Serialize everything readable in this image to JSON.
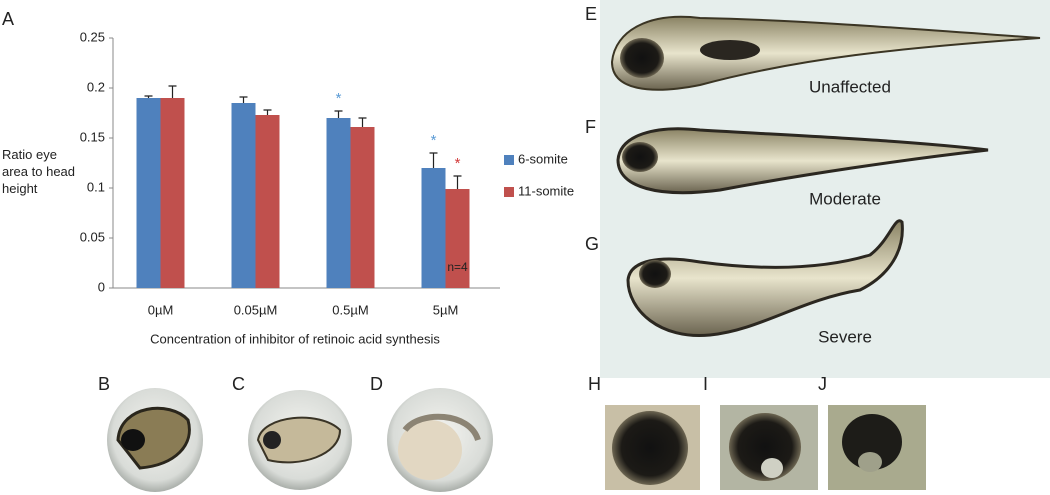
{
  "chart_data": {
    "type": "bar",
    "y_label": "Ratio eye area to head height",
    "x_label": "Concentration of inhibitor of retinoic acid synthesis",
    "categories": [
      "0µM",
      "0.05µM",
      "0.5µM",
      "5µM"
    ],
    "series": [
      {
        "name": "6-somite",
        "color": "#4f81bd",
        "values": [
          0.19,
          0.185,
          0.17,
          0.12
        ],
        "errors": [
          0.002,
          0.006,
          0.007,
          0.015
        ]
      },
      {
        "name": "11-somite",
        "color": "#c0504d",
        "values": [
          0.19,
          0.173,
          0.161,
          0.099
        ],
        "errors": [
          0.012,
          0.005,
          0.009,
          0.013
        ]
      }
    ],
    "ylim": [
      0,
      0.25
    ],
    "yticks": [
      0,
      0.05,
      0.1,
      0.15,
      0.2,
      0.25
    ],
    "grid": false,
    "annotations": [
      {
        "text": "*",
        "series": 0,
        "category": 2,
        "color": "#5b9bd5"
      },
      {
        "text": "*",
        "series": 0,
        "category": 3,
        "color": "#5b9bd5"
      },
      {
        "text": "*",
        "series": 1,
        "category": 3,
        "color": "#d23a3a"
      }
    ],
    "sample_label": {
      "text": "n=4",
      "series": 1,
      "category": 3
    }
  },
  "panels": [
    {
      "label": "A"
    },
    {
      "label": "B"
    },
    {
      "label": "C"
    },
    {
      "label": "D"
    },
    {
      "label": "E",
      "caption": "Unaffected"
    },
    {
      "label": "F",
      "caption": "Moderate"
    },
    {
      "label": "G",
      "caption": "Severe"
    },
    {
      "label": "H"
    },
    {
      "label": "I"
    },
    {
      "label": "J"
    }
  ]
}
